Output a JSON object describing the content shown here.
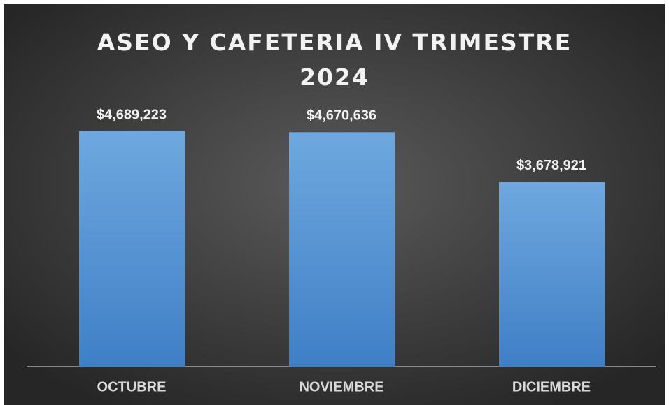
{
  "chart_data": {
    "type": "bar",
    "title": "ASEO Y CAFETERIA IV TRIMESTRE 2024",
    "categories": [
      "OCTUBRE",
      "NOVIEMBRE",
      "DICIEMBRE"
    ],
    "values": [
      4689223,
      4670636,
      3678921
    ],
    "value_labels": [
      "$4,689,223",
      "$4,670,636",
      "$3,678,921"
    ],
    "color": "#5b9bd5"
  }
}
